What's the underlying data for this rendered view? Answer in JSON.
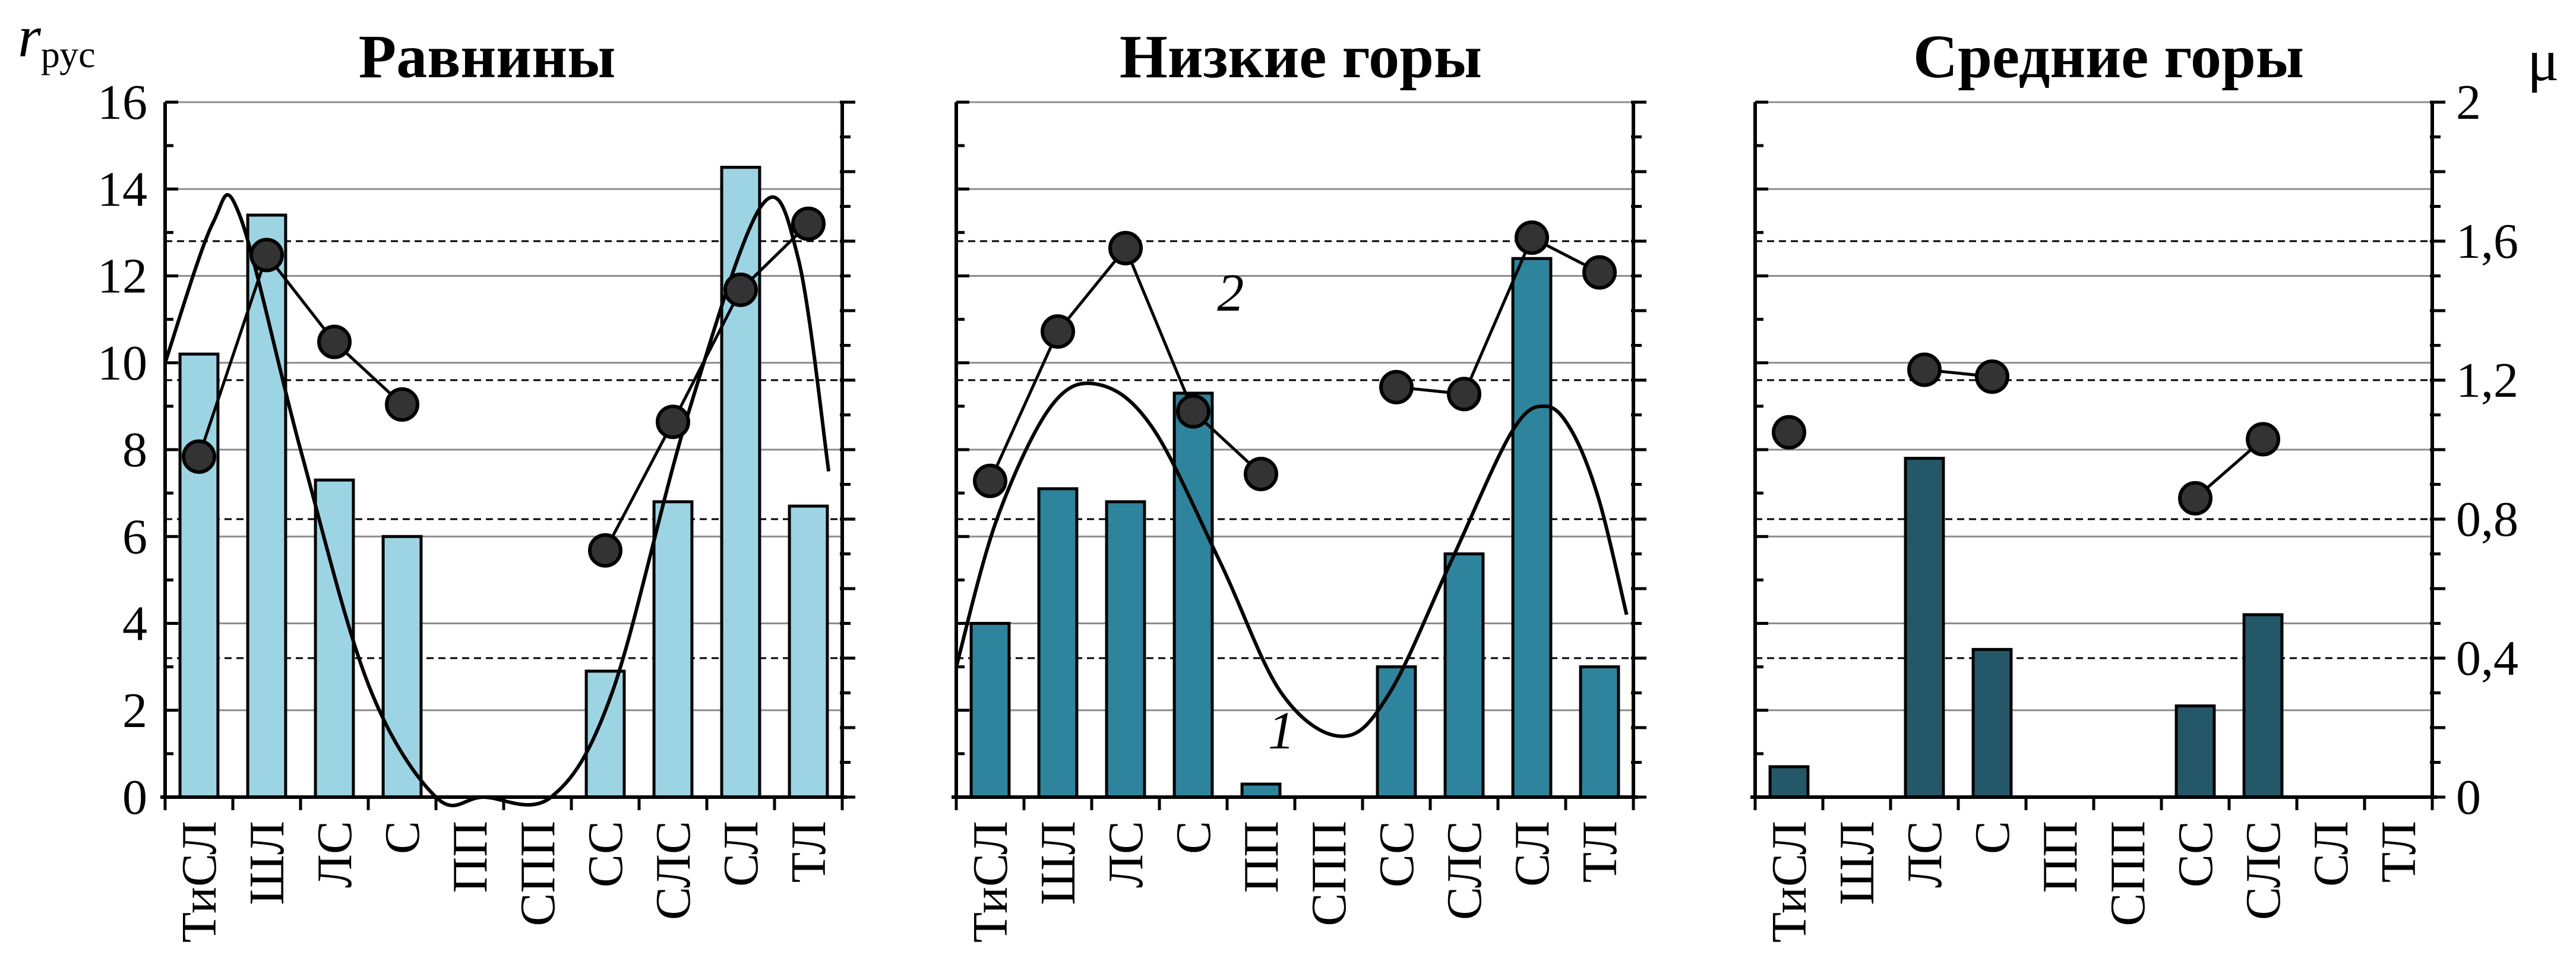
{
  "figure": {
    "y_left_label": "r",
    "y_left_label_sub": "рус",
    "y_right_label": "μ"
  },
  "chart_data": [
    {
      "type": "bar",
      "title": "Равнины",
      "categories": [
        "ТиСЛ",
        "ШЛ",
        "ЛС",
        "С",
        "ПП",
        "СПП",
        "СС",
        "СЛС",
        "СЛ",
        "ТЛ"
      ],
      "values": [
        10.2,
        13.4,
        7.3,
        6.0,
        0,
        0,
        2.9,
        6.8,
        14.5,
        6.7
      ],
      "bar_color": "#9dd4e4",
      "ylim": [
        0,
        16
      ],
      "yticks": [
        "0",
        "2",
        "4",
        "6",
        "8",
        "10",
        "12",
        "14",
        "16"
      ],
      "y2lim": [
        0,
        2
      ],
      "y2ticks": [
        "0",
        "0,4",
        "0,8",
        "1,2",
        "1,6",
        "2"
      ],
      "y2_dashed_lines": [
        0.4,
        0.8,
        1.2,
        1.6
      ],
      "mu_points": [
        0.98,
        1.56,
        1.31,
        1.13,
        null,
        null,
        0.71,
        1.08,
        1.46,
        1.65
      ],
      "trend_curve": true,
      "annotations": []
    },
    {
      "type": "bar",
      "title": "Низкие горы",
      "categories": [
        "ТиСЛ",
        "ШЛ",
        "ЛС",
        "С",
        "ПП",
        "СПП",
        "СС",
        "СЛС",
        "СЛ",
        "ТЛ"
      ],
      "values": [
        4.0,
        7.1,
        6.8,
        9.3,
        0.3,
        0,
        3.0,
        5.6,
        12.4,
        3.0
      ],
      "bar_color": "#2e849c",
      "ylim": [
        0,
        16
      ],
      "yticks": [
        "0",
        "2",
        "4",
        "6",
        "8",
        "10",
        "12",
        "14",
        "16"
      ],
      "y2lim": [
        0,
        2
      ],
      "y2ticks": [
        "0",
        "0,4",
        "0,8",
        "1,2",
        "1,6",
        "2"
      ],
      "y2_dashed_lines": [
        0.4,
        0.8,
        1.2,
        1.6
      ],
      "mu_points": [
        0.91,
        1.34,
        1.58,
        1.11,
        0.93,
        null,
        1.18,
        1.16,
        1.61,
        1.51
      ],
      "trend_curve": true,
      "annotations": [
        "2",
        "1"
      ]
    },
    {
      "type": "bar",
      "title": "Средние горы",
      "categories": [
        "ТиСЛ",
        "ШЛ",
        "ЛС",
        "С",
        "ПП",
        "СПП",
        "СС",
        "СЛС",
        "СЛ",
        "ТЛ"
      ],
      "values": [
        0.7,
        0,
        7.8,
        3.4,
        0,
        0,
        2.1,
        4.2,
        0,
        0
      ],
      "bar_color": "#245868",
      "ylim": [
        0,
        16
      ],
      "yticks": [
        "0",
        "2",
        "4",
        "6",
        "8",
        "10",
        "12",
        "14",
        "16"
      ],
      "y2lim": [
        0,
        2
      ],
      "y2ticks": [
        "0",
        "0,4",
        "0,8",
        "1,2",
        "1,6",
        "2"
      ],
      "y2_dashed_lines": [
        0.4,
        0.8,
        1.2,
        1.6
      ],
      "mu_points": [
        1.05,
        null,
        1.23,
        1.21,
        null,
        null,
        0.86,
        1.03,
        null,
        null
      ],
      "trend_curve": false,
      "annotations": []
    }
  ]
}
